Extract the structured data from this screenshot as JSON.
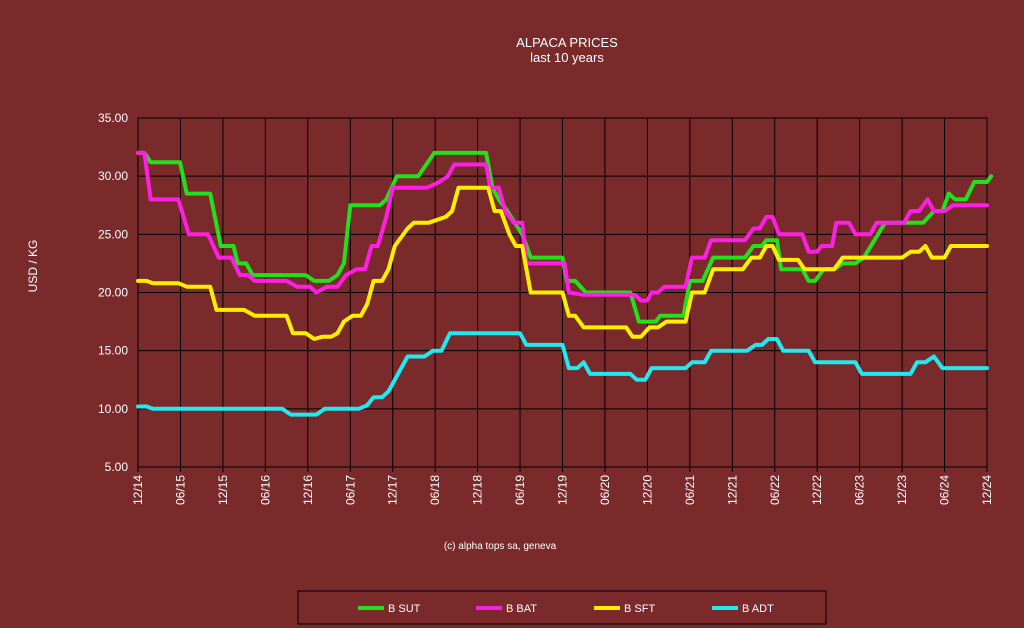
{
  "chart_data": {
    "type": "line",
    "title": "ALPACA PRICES",
    "subtitle": "last 10 years",
    "ylabel": "USD / KG",
    "xlabel": "",
    "credit": "(c) alpha tops sa, geneva",
    "ylim": [
      5,
      35
    ],
    "yticks": [
      "5.00",
      "10.00",
      "15.00",
      "20.00",
      "25.00",
      "30.00",
      "35.00"
    ],
    "x": [
      "12/14",
      "06/15",
      "12/15",
      "06/16",
      "12/16",
      "06/17",
      "12/17",
      "06/18",
      "12/18",
      "06/19",
      "12/19",
      "06/20",
      "12/20",
      "06/21",
      "12/21",
      "06/22",
      "12/22",
      "06/23",
      "12/23",
      "06/24",
      "12/24"
    ],
    "grid": true,
    "legend_position": "bottom",
    "series": [
      {
        "name": "B SUT",
        "color": "#22e01a",
        "points": [
          [
            0,
            32.0
          ],
          [
            0.15,
            32.0
          ],
          [
            0.3,
            31.2
          ],
          [
            0.5,
            31.2
          ],
          [
            0.99,
            31.2
          ],
          [
            1.15,
            28.5
          ],
          [
            1.7,
            28.5
          ],
          [
            1.95,
            24.0
          ],
          [
            2.25,
            24.0
          ],
          [
            2.35,
            22.5
          ],
          [
            2.55,
            22.5
          ],
          [
            2.7,
            21.5
          ],
          [
            3.0,
            21.5
          ],
          [
            3.6,
            21.5
          ],
          [
            3.95,
            21.5
          ],
          [
            4.15,
            21.0
          ],
          [
            4.5,
            21.0
          ],
          [
            4.7,
            21.5
          ],
          [
            4.85,
            22.5
          ],
          [
            5.0,
            27.5
          ],
          [
            5.7,
            27.5
          ],
          [
            5.85,
            28.0
          ],
          [
            6.1,
            30.0
          ],
          [
            6.6,
            30.0
          ],
          [
            6.98,
            32.0
          ],
          [
            7.5,
            32.0
          ],
          [
            8.2,
            32.0
          ],
          [
            8.35,
            29.0
          ],
          [
            8.5,
            28.0
          ],
          [
            8.7,
            27.0
          ],
          [
            9.05,
            25.0
          ],
          [
            9.25,
            23.0
          ],
          [
            10.0,
            23.0
          ],
          [
            10.1,
            21.0
          ],
          [
            10.3,
            21.0
          ],
          [
            10.55,
            20.0
          ],
          [
            11.6,
            20.0
          ],
          [
            11.8,
            17.5
          ],
          [
            12.2,
            17.5
          ],
          [
            12.3,
            18.0
          ],
          [
            12.85,
            18.0
          ],
          [
            13.0,
            21.0
          ],
          [
            13.3,
            21.0
          ],
          [
            13.55,
            23.0
          ],
          [
            14.3,
            23.0
          ],
          [
            14.5,
            24.0
          ],
          [
            14.7,
            24.0
          ],
          [
            14.8,
            24.5
          ],
          [
            15.05,
            24.5
          ],
          [
            15.15,
            22.0
          ],
          [
            15.5,
            22.0
          ],
          [
            15.65,
            22.0
          ],
          [
            15.8,
            21.0
          ],
          [
            15.95,
            21.0
          ],
          [
            16.15,
            22.0
          ],
          [
            16.4,
            22.0
          ],
          [
            16.6,
            22.5
          ],
          [
            16.9,
            22.5
          ],
          [
            17.1,
            23.0
          ],
          [
            17.6,
            26.0
          ],
          [
            18.5,
            26.0
          ],
          [
            18.75,
            27.0
          ],
          [
            18.95,
            27.0
          ],
          [
            19.1,
            28.5
          ],
          [
            19.25,
            28.0
          ],
          [
            19.5,
            28.0
          ],
          [
            19.7,
            29.5
          ],
          [
            20.0,
            29.5
          ],
          [
            20.1,
            30.0
          ]
        ]
      },
      {
        "name": "B BAT",
        "color": "#ff1ee6",
        "points": [
          [
            0,
            32.0
          ],
          [
            0.15,
            32.0
          ],
          [
            0.3,
            28.0
          ],
          [
            0.95,
            28.0
          ],
          [
            1.2,
            25.0
          ],
          [
            1.65,
            25.0
          ],
          [
            1.9,
            23.0
          ],
          [
            2.2,
            23.0
          ],
          [
            2.4,
            21.5
          ],
          [
            2.6,
            21.5
          ],
          [
            2.75,
            21.0
          ],
          [
            3.5,
            21.0
          ],
          [
            3.75,
            20.5
          ],
          [
            4.05,
            20.5
          ],
          [
            4.2,
            20.0
          ],
          [
            4.45,
            20.5
          ],
          [
            4.7,
            20.5
          ],
          [
            4.9,
            21.5
          ],
          [
            5.15,
            22.0
          ],
          [
            5.35,
            22.0
          ],
          [
            5.5,
            24.0
          ],
          [
            5.65,
            24.0
          ],
          [
            5.85,
            26.5
          ],
          [
            6.0,
            29.0
          ],
          [
            6.8,
            29.0
          ],
          [
            7.1,
            29.5
          ],
          [
            7.3,
            30.0
          ],
          [
            7.45,
            31.0
          ],
          [
            8.2,
            31.0
          ],
          [
            8.3,
            29.0
          ],
          [
            8.5,
            29.0
          ],
          [
            8.65,
            27.0
          ],
          [
            8.85,
            26.0
          ],
          [
            9.05,
            26.0
          ],
          [
            9.15,
            22.5
          ],
          [
            10.05,
            22.5
          ],
          [
            10.15,
            20.0
          ],
          [
            10.5,
            19.8
          ],
          [
            11.7,
            19.8
          ],
          [
            11.85,
            19.3
          ],
          [
            12.0,
            19.3
          ],
          [
            12.1,
            20.0
          ],
          [
            12.25,
            20.0
          ],
          [
            12.4,
            20.5
          ],
          [
            12.9,
            20.5
          ],
          [
            13.05,
            23.0
          ],
          [
            13.35,
            23.0
          ],
          [
            13.5,
            24.5
          ],
          [
            14.3,
            24.5
          ],
          [
            14.5,
            25.5
          ],
          [
            14.65,
            25.5
          ],
          [
            14.8,
            26.5
          ],
          [
            14.95,
            26.5
          ],
          [
            15.1,
            25.0
          ],
          [
            15.65,
            25.0
          ],
          [
            15.8,
            23.5
          ],
          [
            16.0,
            23.5
          ],
          [
            16.1,
            24.0
          ],
          [
            16.35,
            24.0
          ],
          [
            16.45,
            26.0
          ],
          [
            16.75,
            26.0
          ],
          [
            16.9,
            25.0
          ],
          [
            17.25,
            25.0
          ],
          [
            17.4,
            26.0
          ],
          [
            18.05,
            26.0
          ],
          [
            18.2,
            27.0
          ],
          [
            18.4,
            27.0
          ],
          [
            18.6,
            28.0
          ],
          [
            18.75,
            27.0
          ],
          [
            19.0,
            27.0
          ],
          [
            19.2,
            27.5
          ],
          [
            20.0,
            27.5
          ]
        ]
      },
      {
        "name": "B SFT",
        "color": "#ffee00",
        "points": [
          [
            0,
            21.0
          ],
          [
            0.2,
            21.0
          ],
          [
            0.35,
            20.8
          ],
          [
            0.95,
            20.8
          ],
          [
            1.15,
            20.5
          ],
          [
            1.7,
            20.5
          ],
          [
            1.85,
            18.5
          ],
          [
            2.5,
            18.5
          ],
          [
            2.75,
            18.0
          ],
          [
            3.5,
            18.0
          ],
          [
            3.65,
            16.5
          ],
          [
            3.95,
            16.5
          ],
          [
            4.15,
            16.0
          ],
          [
            4.35,
            16.2
          ],
          [
            4.55,
            16.2
          ],
          [
            4.7,
            16.5
          ],
          [
            4.85,
            17.5
          ],
          [
            5.05,
            18.0
          ],
          [
            5.25,
            18.0
          ],
          [
            5.4,
            19.0
          ],
          [
            5.55,
            21.0
          ],
          [
            5.75,
            21.0
          ],
          [
            5.9,
            22.0
          ],
          [
            6.05,
            24.0
          ],
          [
            6.35,
            25.5
          ],
          [
            6.5,
            26.0
          ],
          [
            6.85,
            26.0
          ],
          [
            7.25,
            26.5
          ],
          [
            7.4,
            27.0
          ],
          [
            7.55,
            29.0
          ],
          [
            8.25,
            29.0
          ],
          [
            8.4,
            27.0
          ],
          [
            8.55,
            27.0
          ],
          [
            8.75,
            25.0
          ],
          [
            8.9,
            24.0
          ],
          [
            9.05,
            24.0
          ],
          [
            9.25,
            20.0
          ],
          [
            10.0,
            20.0
          ],
          [
            10.15,
            18.0
          ],
          [
            10.3,
            18.0
          ],
          [
            10.5,
            17.0
          ],
          [
            11.5,
            17.0
          ],
          [
            11.65,
            16.2
          ],
          [
            11.85,
            16.2
          ],
          [
            12.05,
            17.0
          ],
          [
            12.25,
            17.0
          ],
          [
            12.45,
            17.5
          ],
          [
            12.9,
            17.5
          ],
          [
            13.05,
            20.0
          ],
          [
            13.35,
            20.0
          ],
          [
            13.55,
            22.0
          ],
          [
            14.25,
            22.0
          ],
          [
            14.45,
            23.0
          ],
          [
            14.65,
            23.0
          ],
          [
            14.8,
            24.0
          ],
          [
            14.95,
            24.0
          ],
          [
            15.1,
            22.8
          ],
          [
            15.55,
            22.8
          ],
          [
            15.7,
            22.0
          ],
          [
            16.4,
            22.0
          ],
          [
            16.6,
            23.0
          ],
          [
            18.0,
            23.0
          ],
          [
            18.2,
            23.5
          ],
          [
            18.4,
            23.5
          ],
          [
            18.55,
            24.0
          ],
          [
            18.7,
            23.0
          ],
          [
            19.0,
            23.0
          ],
          [
            19.15,
            24.0
          ],
          [
            20.0,
            24.0
          ]
        ]
      },
      {
        "name": "B ADT",
        "color": "#22e8f0",
        "points": [
          [
            0,
            10.2
          ],
          [
            0.2,
            10.2
          ],
          [
            0.35,
            10.0
          ],
          [
            3.4,
            10.0
          ],
          [
            3.6,
            9.5
          ],
          [
            4.2,
            9.5
          ],
          [
            4.4,
            10.0
          ],
          [
            5.2,
            10.0
          ],
          [
            5.4,
            10.3
          ],
          [
            5.55,
            11.0
          ],
          [
            5.75,
            11.0
          ],
          [
            5.9,
            11.5
          ],
          [
            6.35,
            14.5
          ],
          [
            6.75,
            14.5
          ],
          [
            6.95,
            15.0
          ],
          [
            7.15,
            15.0
          ],
          [
            7.35,
            16.5
          ],
          [
            9.0,
            16.5
          ],
          [
            9.15,
            15.5
          ],
          [
            10.0,
            15.5
          ],
          [
            10.15,
            13.5
          ],
          [
            10.35,
            13.5
          ],
          [
            10.5,
            14.0
          ],
          [
            10.65,
            13.0
          ],
          [
            11.6,
            13.0
          ],
          [
            11.75,
            12.5
          ],
          [
            11.95,
            12.5
          ],
          [
            12.1,
            13.5
          ],
          [
            12.9,
            13.5
          ],
          [
            13.05,
            14.0
          ],
          [
            13.35,
            14.0
          ],
          [
            13.5,
            15.0
          ],
          [
            14.35,
            15.0
          ],
          [
            14.55,
            15.5
          ],
          [
            14.7,
            15.5
          ],
          [
            14.85,
            16.0
          ],
          [
            15.05,
            16.0
          ],
          [
            15.2,
            15.0
          ],
          [
            15.8,
            15.0
          ],
          [
            15.95,
            14.0
          ],
          [
            16.9,
            14.0
          ],
          [
            17.05,
            13.0
          ],
          [
            18.2,
            13.0
          ],
          [
            18.35,
            14.0
          ],
          [
            18.55,
            14.0
          ],
          [
            18.75,
            14.5
          ],
          [
            18.95,
            13.5
          ],
          [
            20.0,
            13.5
          ]
        ]
      }
    ]
  }
}
